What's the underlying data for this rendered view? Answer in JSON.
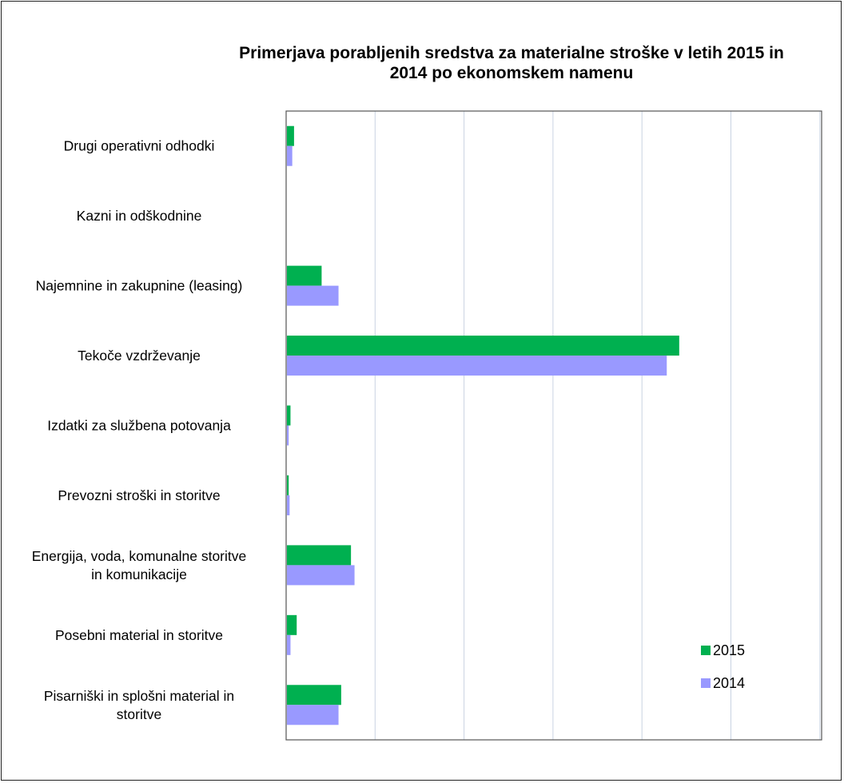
{
  "chart_data": {
    "type": "bar",
    "orientation": "horizontal",
    "title_lines": [
      "Primerjava porabljenih sredstva za materialne stroške v letih 2015 in",
      "2014 po ekonomskem namenu"
    ],
    "categories": [
      [
        "Drugi operativni odhodki"
      ],
      [
        "Kazni in odškodnine"
      ],
      [
        "Najemnine in zakupnine (leasing)"
      ],
      [
        "Tekoče vzdrževanje"
      ],
      [
        "Izdatki za službena potovanja"
      ],
      [
        "Prevozni stroški in storitve"
      ],
      [
        "Energija, voda, komunalne storitve",
        "in komunikacije"
      ],
      [
        "Posebni material in storitve"
      ],
      [
        "Pisarniški in splošni material in",
        "storitve"
      ]
    ],
    "series": [
      {
        "name": "2015",
        "color": "#00b050",
        "values": [
          8,
          0,
          39,
          441,
          4,
          2,
          72,
          11,
          61
        ]
      },
      {
        "name": "2014",
        "color": "#9999ff",
        "values": [
          6,
          0,
          58,
          427,
          2,
          3,
          76,
          4,
          58
        ]
      }
    ],
    "xlim": [
      0,
      600
    ],
    "x_gridlines": 6,
    "x_tick_labels": false,
    "grid": true,
    "legend_position": "bottom-right"
  }
}
